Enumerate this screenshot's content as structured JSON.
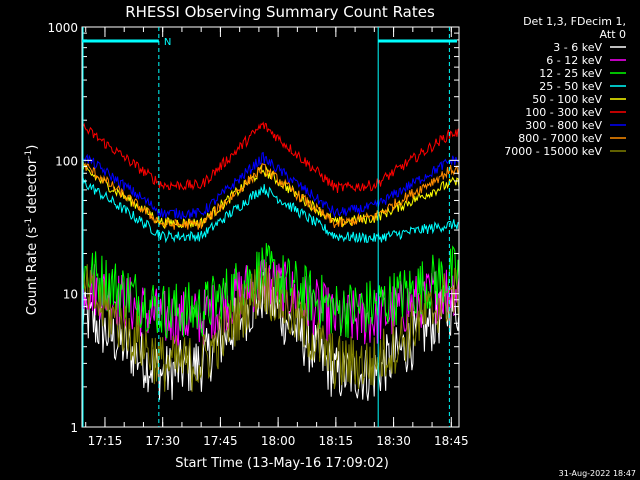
{
  "chart_data": {
    "type": "line",
    "title": "RHESSI Observing Summary Count Rates",
    "xlabel": "Start Time (13-May-16 17:09:02)",
    "ylabel_main": "Count Rate (s",
    "ylabel_sup1": "-1",
    "ylabel_mid": " detector",
    "ylabel_sup2": "-1",
    "ylabel_end": ")",
    "yscale": "log",
    "ylim": [
      1,
      1000
    ],
    "xlim": [
      "17:09:02",
      "18:47:00"
    ],
    "xticks": [
      "17:15",
      "17:30",
      "17:45",
      "18:00",
      "18:15",
      "18:30",
      "18:45"
    ],
    "yticks": [
      "1",
      "10",
      "100",
      "1000"
    ],
    "legend_header": [
      "Det 1,3, FDecim 1,",
      "Att 0"
    ],
    "legend_placement": "right",
    "flag_label": "N",
    "timestamp": "31-Aug-2022 18:47",
    "series": [
      {
        "name": "3 - 6 keV",
        "color": "#ffffff",
        "base": [
          7,
          2.5,
          3,
          10,
          2.5,
          2.5,
          8
        ]
      },
      {
        "name": "6 - 12 keV",
        "color": "#ff00ff",
        "base": [
          12,
          6.5,
          6.5,
          13,
          6.5,
          6.5,
          11
        ]
      },
      {
        "name": "12 - 25 keV",
        "color": "#00ff00",
        "base": [
          15,
          7.5,
          7.5,
          15,
          7.5,
          8,
          14
        ]
      },
      {
        "name": "25 - 50 keV",
        "color": "#00ffff",
        "base": [
          70,
          27,
          27,
          62,
          27,
          26,
          33
        ]
      },
      {
        "name": "50 - 100 keV",
        "color": "#ffff00",
        "base": [
          88,
          34,
          34,
          85,
          34,
          37,
          68
        ]
      },
      {
        "name": "100 - 300 keV",
        "color": "#ff0000",
        "base": [
          180,
          65,
          65,
          185,
          62,
          65,
          160
        ]
      },
      {
        "name": "300 - 800 keV",
        "color": "#0000ff",
        "base": [
          110,
          40,
          40,
          105,
          40,
          45,
          100
        ]
      },
      {
        "name": "800 - 7000 keV",
        "color": "#ff8c00",
        "base": [
          95,
          33,
          33,
          88,
          33,
          38,
          85
        ]
      },
      {
        "name": "7000 - 15000 keV",
        "color": "#808000",
        "base": [
          11,
          3,
          3,
          12,
          3,
          3,
          10
        ]
      }
    ],
    "knot_times": [
      "17:09",
      "17:30",
      "17:40",
      "17:56",
      "18:15",
      "18:25",
      "18:45"
    ]
  },
  "colors": {
    "axis": "#ffffff",
    "flag": "#00ffff"
  }
}
